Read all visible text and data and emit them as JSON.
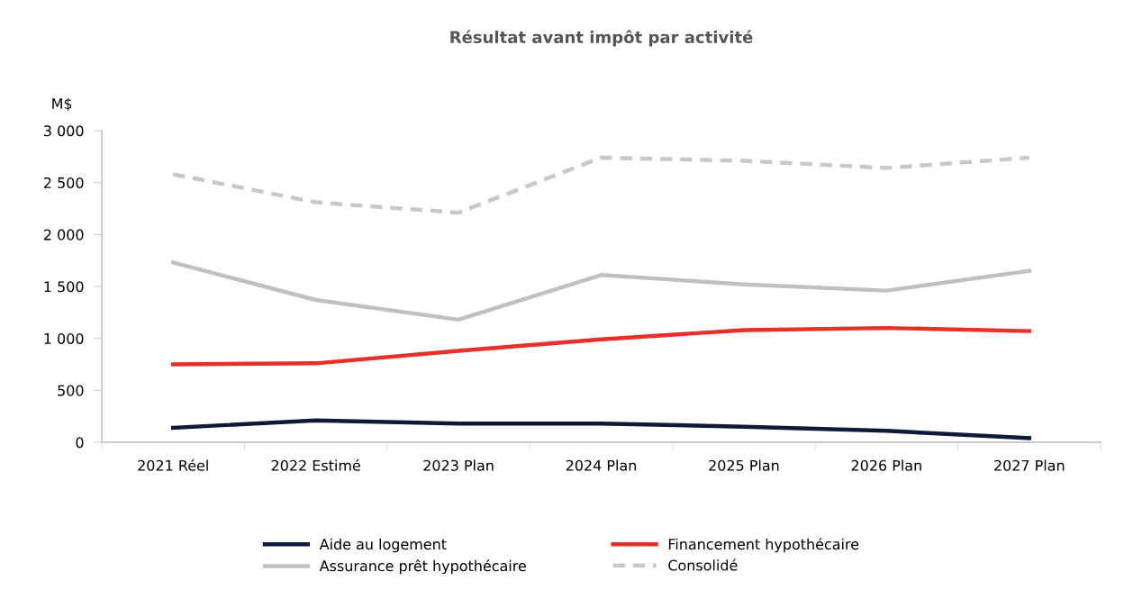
{
  "chart_data": {
    "type": "line",
    "title": "Résultat avant impôt par activité",
    "ylabel": "M$",
    "categories": [
      "2021 Réel",
      "2022 Estimé",
      "2023 Plan",
      "2024 Plan",
      "2025 Plan",
      "2026 Plan",
      "2027 Plan"
    ],
    "series": [
      {
        "name": "Aide au logement",
        "color": "#0f1836",
        "values": [
          140,
          210,
          180,
          180,
          150,
          110,
          40
        ]
      },
      {
        "name": "Financement hypothécaire",
        "color": "#e8302a",
        "values": [
          750,
          760,
          880,
          990,
          1080,
          1100,
          1070
        ]
      },
      {
        "name": "Assurance prêt hypothécaire",
        "color": "#c0c0c0",
        "values": [
          1730,
          1370,
          1180,
          1610,
          1520,
          1460,
          1650
        ]
      },
      {
        "name": "Consolidé",
        "color": "#c8c8c8",
        "line_style": "dashed",
        "values": [
          2580,
          2310,
          2210,
          2740,
          2710,
          2640,
          2740
        ]
      }
    ],
    "ylim": [
      0,
      3000
    ],
    "yticks": [
      {
        "value": 0,
        "label": "0"
      },
      {
        "value": 500,
        "label": "500"
      },
      {
        "value": 1000,
        "label": "1 000"
      },
      {
        "value": 1500,
        "label": "1 500"
      },
      {
        "value": 2000,
        "label": "2 000"
      },
      {
        "value": 2500,
        "label": "2 500"
      },
      {
        "value": 3000,
        "label": "3 000"
      }
    ],
    "grid": false,
    "legend": "bottom",
    "marker": "none",
    "line_style": "solid"
  }
}
